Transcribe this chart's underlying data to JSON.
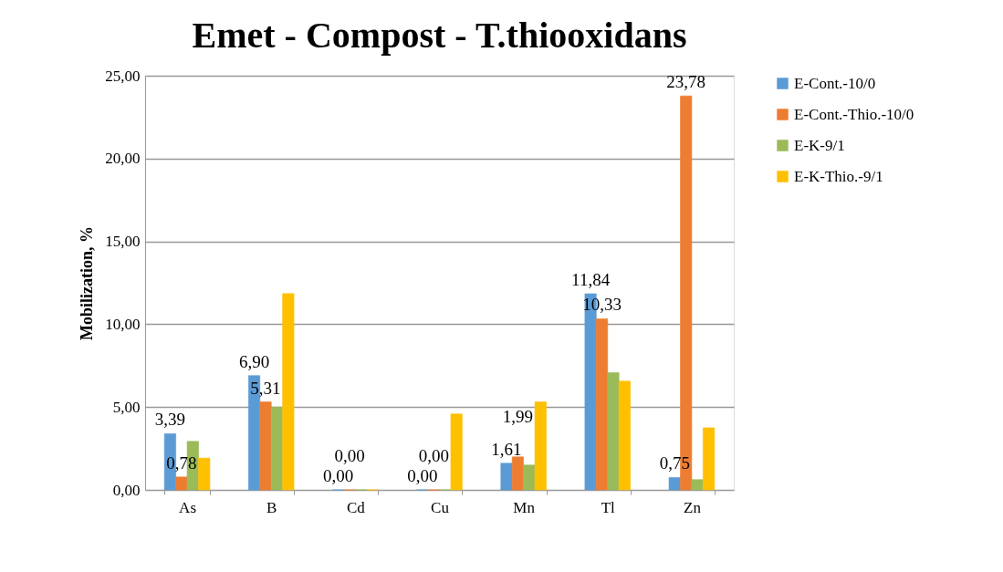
{
  "chart_data": {
    "type": "bar",
    "title": "Emet - Compost - T.thiooxidans",
    "ylabel": "Mobilization, %",
    "categories": [
      "As",
      "B",
      "Cd",
      "Cu",
      "Mn",
      "Tl",
      "Zn"
    ],
    "series": [
      {
        "name": "E-Cont.-10/0",
        "color": "#5b9bd5",
        "values": [
          3.39,
          6.9,
          0,
          0,
          1.61,
          11.84,
          0.75
        ],
        "value_labels": [
          "3,39",
          "6,90",
          "0,00",
          "0,00",
          "1,61",
          "11,84",
          "0,75"
        ]
      },
      {
        "name": "E-Cont.-Thio.-10/0",
        "color": "#ed7d31",
        "values": [
          0.78,
          5.31,
          0,
          0,
          1.99,
          10.33,
          23.78
        ],
        "value_labels": [
          "0,78",
          "5,31",
          "0,00",
          "0,00",
          "1,99",
          "10,33",
          "23,78"
        ]
      },
      {
        "name": "E-K-9/1",
        "color": "#9bbb59",
        "values": [
          2.93,
          5.0,
          0,
          0,
          1.5,
          7.07,
          0.62
        ]
      },
      {
        "name": "E-K-Thio.-9/1",
        "color": "#ffc000",
        "values": [
          1.92,
          11.85,
          0,
          4.58,
          5.31,
          6.56,
          3.75
        ]
      }
    ],
    "ylim": [
      0,
      25
    ],
    "yticks": [
      {
        "value": 0,
        "label": "0,00"
      },
      {
        "value": 5,
        "label": "5,00"
      },
      {
        "value": 10,
        "label": "10,00"
      },
      {
        "value": 15,
        "label": "15,00"
      },
      {
        "value": 20,
        "label": "20,00"
      },
      {
        "value": 25,
        "label": "25,00"
      }
    ],
    "grid": "y",
    "legend": "right"
  }
}
